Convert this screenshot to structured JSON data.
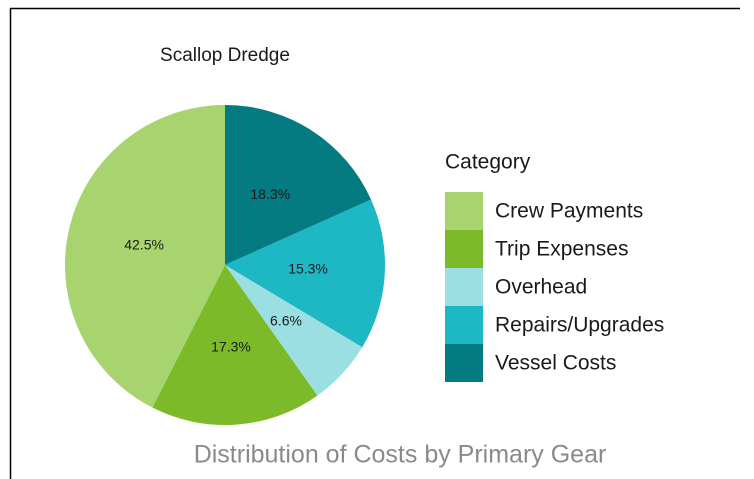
{
  "chart_data": {
    "type": "pie",
    "title": "Scallop Dredge",
    "legend_title": "Category",
    "caption": "Distribution of Costs by Primary Gear",
    "categories": [
      "Crew Payments",
      "Trip Expenses",
      "Overhead",
      "Repairs/Upgrades",
      "Vessel Costs"
    ],
    "values": [
      42.5,
      17.3,
      6.6,
      15.3,
      18.3
    ],
    "value_labels": [
      "42.5%",
      "17.3%",
      "6.6%",
      "15.3%",
      "18.3%"
    ],
    "colors": [
      "#a8d46f",
      "#7dba2a",
      "#9bdfe3",
      "#1db8c4",
      "#047b80"
    ]
  }
}
